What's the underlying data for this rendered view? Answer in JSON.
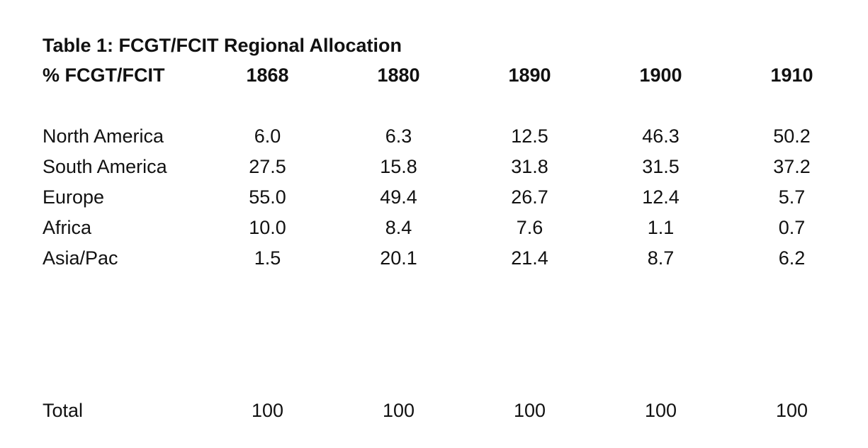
{
  "table": {
    "title": "Table 1: FCGT/FCIT Regional Allocation",
    "header": {
      "label": "% FCGT/FCIT",
      "years": [
        "1868",
        "1880",
        "1890",
        "1900",
        "1910"
      ]
    },
    "rows": [
      {
        "label": "North America",
        "values": [
          "6.0",
          "6.3",
          "12.5",
          "46.3",
          "50.2"
        ]
      },
      {
        "label": "South America",
        "values": [
          "27.5",
          "15.8",
          "31.8",
          "31.5",
          "37.2"
        ]
      },
      {
        "label": "Europe",
        "values": [
          "55.0",
          "49.4",
          "26.7",
          "12.4",
          "5.7"
        ]
      },
      {
        "label": "Africa",
        "values": [
          "10.0",
          "8.4",
          "7.6",
          "1.1",
          "0.7"
        ]
      },
      {
        "label": "Asia/Pac",
        "values": [
          "1.5",
          "20.1",
          "21.4",
          "8.7",
          "6.2"
        ]
      }
    ],
    "total": {
      "label": "Total",
      "values": [
        "100",
        "100",
        "100",
        "100",
        "100"
      ]
    }
  }
}
